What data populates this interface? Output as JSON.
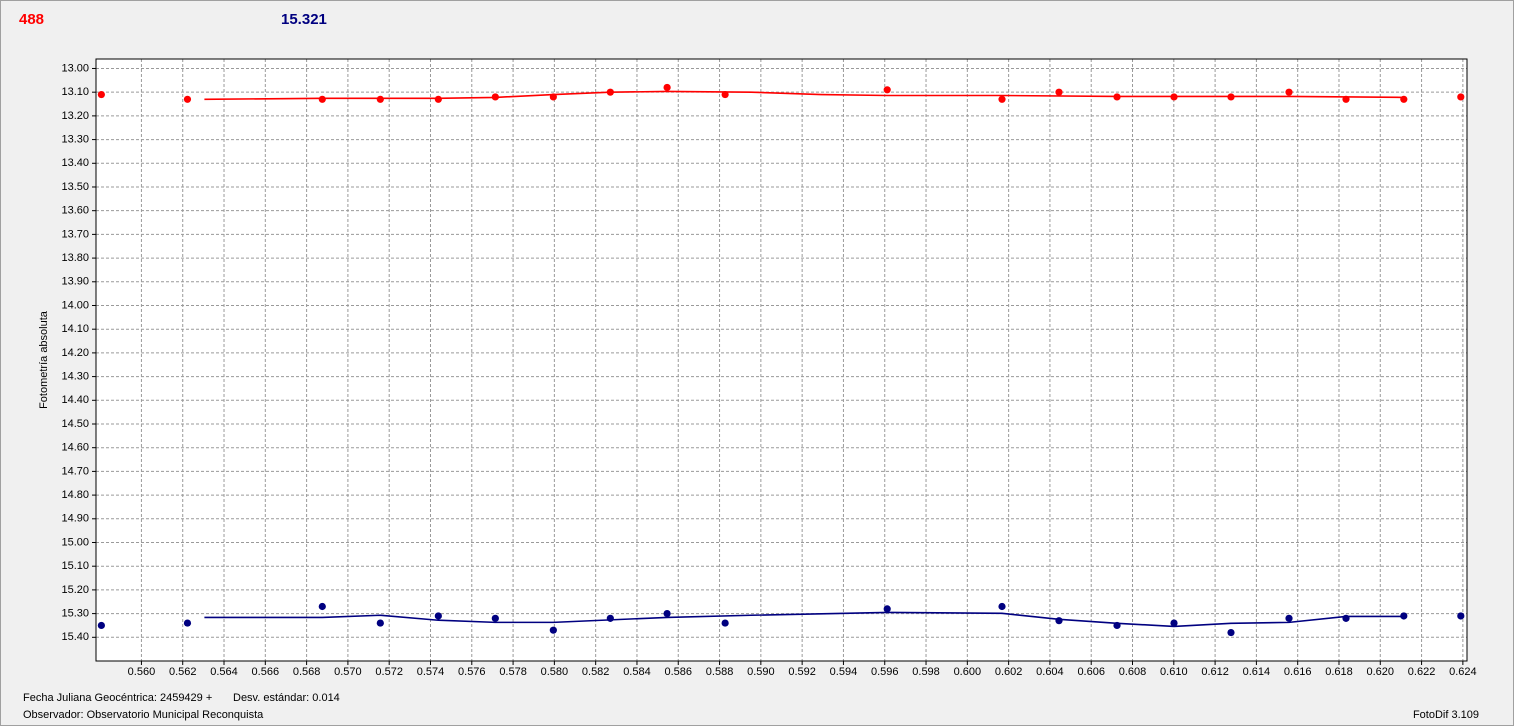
{
  "header": {
    "left": "488",
    "right": "15.321"
  },
  "footer": {
    "date": "Fecha Juliana Geocéntrica: 2459429 +",
    "std": "Desv. estándar: 0.014",
    "observer": "Observador: Observatorio Municipal Reconquista",
    "version": "FotoDif 3.109"
  },
  "chart_data": {
    "type": "scatter",
    "y_label": "Fotometría absoluta",
    "xlim": [
      0.5578,
      0.6242
    ],
    "ylim": [
      12.96,
      15.5
    ],
    "y_reversed": true,
    "grid": true,
    "xticks": [
      {
        "value": 0.56,
        "label": "0.560"
      },
      {
        "value": 0.562,
        "label": "0.562"
      },
      {
        "value": 0.564,
        "label": "0.564"
      },
      {
        "value": 0.566,
        "label": "0.566"
      },
      {
        "value": 0.568,
        "label": "0.568"
      },
      {
        "value": 0.57,
        "label": "0.570"
      },
      {
        "value": 0.572,
        "label": "0.572"
      },
      {
        "value": 0.574,
        "label": "0.574"
      },
      {
        "value": 0.576,
        "label": "0.576"
      },
      {
        "value": 0.578,
        "label": "0.578"
      },
      {
        "value": 0.58,
        "label": "0.580"
      },
      {
        "value": 0.582,
        "label": "0.582"
      },
      {
        "value": 0.584,
        "label": "0.584"
      },
      {
        "value": 0.586,
        "label": "0.586"
      },
      {
        "value": 0.588,
        "label": "0.588"
      },
      {
        "value": 0.59,
        "label": "0.590"
      },
      {
        "value": 0.592,
        "label": "0.592"
      },
      {
        "value": 0.594,
        "label": "0.594"
      },
      {
        "value": 0.596,
        "label": "0.596"
      },
      {
        "value": 0.598,
        "label": "0.598"
      },
      {
        "value": 0.6,
        "label": "0.600"
      },
      {
        "value": 0.602,
        "label": "0.602"
      },
      {
        "value": 0.604,
        "label": "0.604"
      },
      {
        "value": 0.606,
        "label": "0.606"
      },
      {
        "value": 0.608,
        "label": "0.608"
      },
      {
        "value": 0.61,
        "label": "0.610"
      },
      {
        "value": 0.612,
        "label": "0.612"
      },
      {
        "value": 0.614,
        "label": "0.614"
      },
      {
        "value": 0.616,
        "label": "0.616"
      },
      {
        "value": 0.618,
        "label": "0.618"
      },
      {
        "value": 0.62,
        "label": "0.620"
      },
      {
        "value": 0.622,
        "label": "0.622"
      },
      {
        "value": 0.624,
        "label": "0.624"
      }
    ],
    "yticks": [
      {
        "value": 13,
        "label": "13.00"
      },
      {
        "value": 13.1,
        "label": "13.10"
      },
      {
        "value": 13.2,
        "label": "13.20"
      },
      {
        "value": 13.3,
        "label": "13.30"
      },
      {
        "value": 13.4,
        "label": "13.40"
      },
      {
        "value": 13.5,
        "label": "13.50"
      },
      {
        "value": 13.6,
        "label": "13.60"
      },
      {
        "value": 13.7,
        "label": "13.70"
      },
      {
        "value": 13.8,
        "label": "13.80"
      },
      {
        "value": 13.9,
        "label": "13.90"
      },
      {
        "value": 14,
        "label": "14.00"
      },
      {
        "value": 14.1,
        "label": "14.10"
      },
      {
        "value": 14.2,
        "label": "14.20"
      },
      {
        "value": 14.3,
        "label": "14.30"
      },
      {
        "value": 14.4,
        "label": "14.40"
      },
      {
        "value": 14.5,
        "label": "14.50"
      },
      {
        "value": 14.6,
        "label": "14.60"
      },
      {
        "value": 14.7,
        "label": "14.70"
      },
      {
        "value": 14.8,
        "label": "14.80"
      },
      {
        "value": 14.9,
        "label": "14.90"
      },
      {
        "value": 15,
        "label": "15.00"
      },
      {
        "value": 15.1,
        "label": "15.10"
      },
      {
        "value": 15.2,
        "label": "15.20"
      },
      {
        "value": 15.3,
        "label": "15.30"
      },
      {
        "value": 15.4,
        "label": "15.40"
      }
    ],
    "series": [
      {
        "style": "points",
        "color": "#ff0000",
        "x": [
          0.55806,
          0.56223,
          0.56876,
          0.57157,
          0.57438,
          0.57714,
          0.57995,
          0.58271,
          0.58546,
          0.58827,
          0.59612,
          0.60168,
          0.60444,
          0.60725,
          0.61001,
          0.61277,
          0.61558,
          0.61834,
          0.62114,
          0.6239
        ],
        "values": [
          13.11,
          13.13,
          13.13,
          13.13,
          13.13,
          13.12,
          13.12,
          13.1,
          13.08,
          13.11,
          13.09,
          13.13,
          13.1,
          13.12,
          13.12,
          13.12,
          13.1,
          13.13,
          13.13,
          13.12
        ]
      },
      {
        "style": "points",
        "color": "#000080",
        "x": [
          0.55806,
          0.56223,
          0.56876,
          0.57157,
          0.57438,
          0.57714,
          0.57995,
          0.58271,
          0.58546,
          0.58827,
          0.59612,
          0.60168,
          0.60444,
          0.60725,
          0.61001,
          0.61277,
          0.61558,
          0.61834,
          0.62114,
          0.6239
        ],
        "values": [
          15.35,
          15.34,
          15.27,
          15.34,
          15.31,
          15.32,
          15.37,
          15.32,
          15.3,
          15.34,
          15.28,
          15.27,
          15.33,
          15.35,
          15.34,
          15.38,
          15.32,
          15.32,
          15.31,
          15.31
        ]
      },
      {
        "style": "line",
        "color": "#ff0000",
        "x": [
          0.56305,
          0.56876,
          0.57438,
          0.57714,
          0.57995,
          0.58271,
          0.58546,
          0.58953,
          0.59292,
          0.59612,
          0.60168,
          0.60725,
          0.61277,
          0.61558,
          0.62114
        ],
        "values": [
          13.13,
          13.126,
          13.126,
          13.122,
          13.11,
          13.1,
          13.097,
          13.1,
          13.11,
          13.114,
          13.114,
          13.118,
          13.118,
          13.118,
          13.122
        ]
      },
      {
        "style": "line",
        "color": "#000080",
        "x": [
          0.56305,
          0.56876,
          0.57157,
          0.57438,
          0.57714,
          0.57995,
          0.58546,
          0.58953,
          0.59612,
          0.60168,
          0.60444,
          0.60725,
          0.61001,
          0.61277,
          0.61558,
          0.61834,
          0.62114
        ],
        "values": [
          15.316,
          15.316,
          15.307,
          15.328,
          15.337,
          15.337,
          15.316,
          15.307,
          15.295,
          15.299,
          15.324,
          15.341,
          15.354,
          15.341,
          15.337,
          15.312,
          15.312
        ]
      }
    ]
  }
}
